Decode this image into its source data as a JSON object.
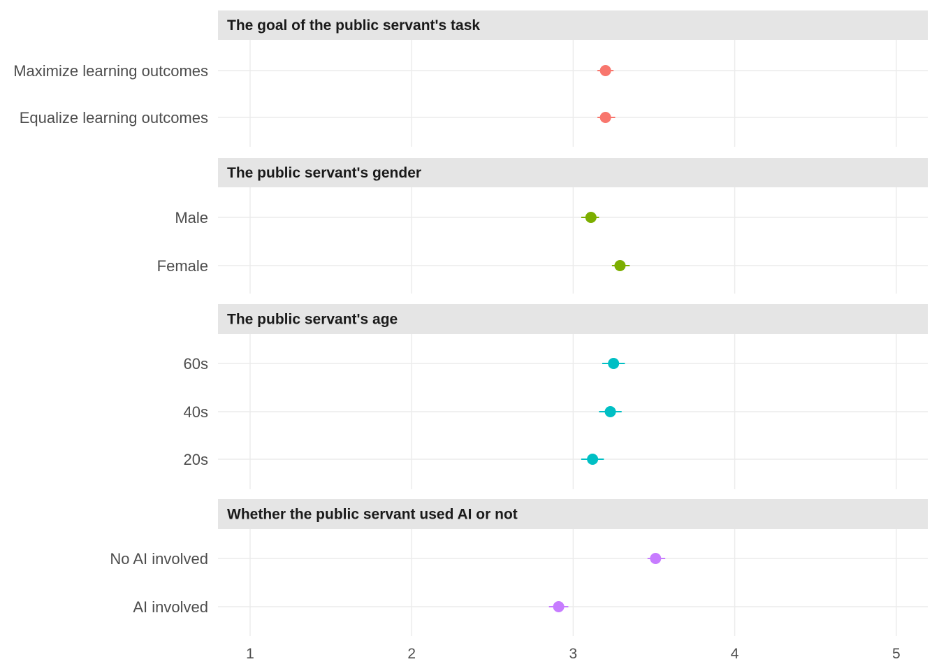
{
  "chart_data": {
    "type": "scatter",
    "title": "",
    "xlabel": "",
    "ylabel": "",
    "xlim": [
      0.8,
      5.2
    ],
    "x_ticks": [
      1,
      2,
      3,
      4,
      5
    ],
    "grid": true,
    "legend": "none",
    "panels": [
      {
        "title": "The goal of the public servant's task",
        "color": "#F8766D",
        "rows": [
          {
            "label": "Maximize learning outcomes",
            "value": 3.2,
            "low": 3.15,
            "high": 3.25
          },
          {
            "label": "Equalize learning outcomes",
            "value": 3.2,
            "low": 3.15,
            "high": 3.26
          }
        ]
      },
      {
        "title": "The public servant's gender",
        "color": "#7CAE00",
        "rows": [
          {
            "label": "Male",
            "value": 3.11,
            "low": 3.05,
            "high": 3.16
          },
          {
            "label": "Female",
            "value": 3.29,
            "low": 3.24,
            "high": 3.35
          }
        ]
      },
      {
        "title": "The public servant's age",
        "color": "#00BFC4",
        "rows": [
          {
            "label": "60s",
            "value": 3.25,
            "low": 3.18,
            "high": 3.32
          },
          {
            "label": "40s",
            "value": 3.23,
            "low": 3.16,
            "high": 3.3
          },
          {
            "label": "20s",
            "value": 3.12,
            "low": 3.05,
            "high": 3.19
          }
        ]
      },
      {
        "title": "Whether the public servant used AI or not",
        "color": "#C77CFF",
        "rows": [
          {
            "label": "No AI involved",
            "value": 3.51,
            "low": 3.46,
            "high": 3.57
          },
          {
            "label": "AI involved",
            "value": 2.91,
            "low": 2.85,
            "high": 2.97
          }
        ]
      }
    ]
  }
}
